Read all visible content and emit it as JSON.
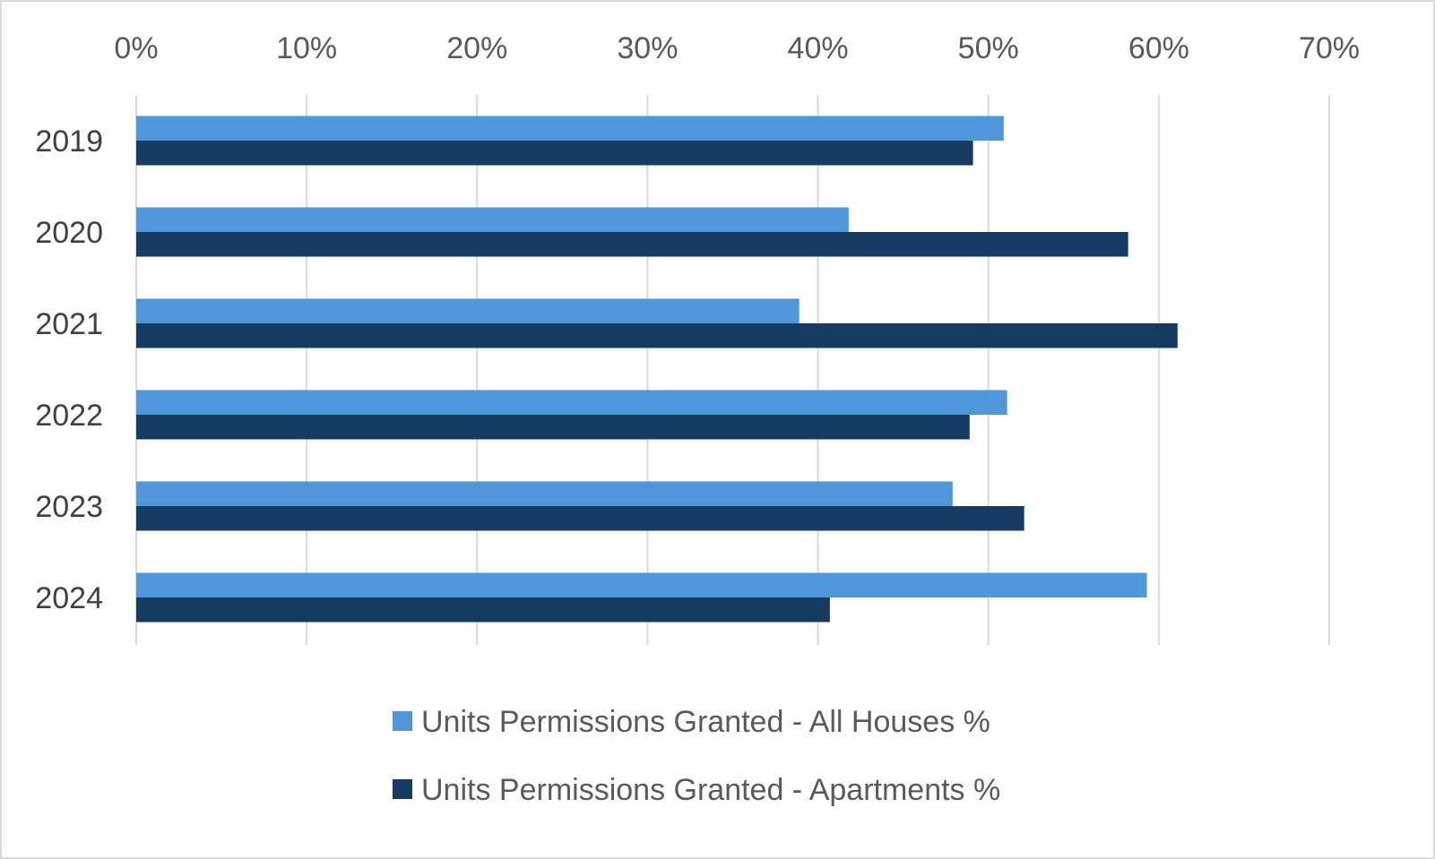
{
  "chart_data": {
    "type": "bar",
    "orientation": "horizontal",
    "categories": [
      "2019",
      "2020",
      "2021",
      "2022",
      "2023",
      "2024"
    ],
    "series": [
      {
        "name": "Units Permissions Granted - All Houses %",
        "color": "#4F96DA",
        "values": [
          0.509,
          0.418,
          0.389,
          0.511,
          0.479,
          0.593
        ]
      },
      {
        "name": "Units Permissions Granted - Apartments %",
        "color": "#163B63",
        "values": [
          0.491,
          0.582,
          0.611,
          0.489,
          0.521,
          0.407
        ]
      }
    ],
    "x_ticks": [
      "0%",
      "10%",
      "20%",
      "30%",
      "40%",
      "50%",
      "60%",
      "70%"
    ],
    "xlim": [
      0,
      0.7
    ],
    "x_axis_position": "top",
    "grid": true,
    "gridline_color": "#d9d9d9",
    "legend_position": "bottom",
    "title": "",
    "xlabel": "",
    "ylabel": ""
  }
}
